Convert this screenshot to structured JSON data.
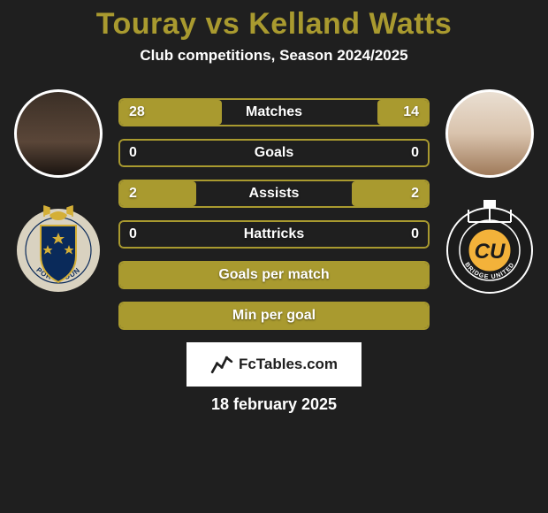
{
  "title_text": "Touray vs Kelland Watts",
  "title_color": "#a99a2f",
  "subtitle": "Club competitions, Season 2024/2025",
  "background_color": "#1f1f1f",
  "bar_border_color": "#a99a2f",
  "fill_color_p1": "#a99a2f",
  "fill_color_p2": "#a99a2f",
  "stats": [
    {
      "label": "Matches",
      "left_val": "28",
      "right_val": "14",
      "left_pct": 66.7,
      "right_pct": 33.3,
      "show_vals": true
    },
    {
      "label": "Goals",
      "left_val": "0",
      "right_val": "0",
      "left_pct": 0,
      "right_pct": 0,
      "show_vals": true
    },
    {
      "label": "Assists",
      "left_val": "2",
      "right_val": "2",
      "left_pct": 50,
      "right_pct": 50,
      "show_vals": true
    },
    {
      "label": "Hattricks",
      "left_val": "0",
      "right_val": "0",
      "left_pct": 0,
      "right_pct": 0,
      "show_vals": true
    },
    {
      "label": "Goals per match",
      "left_val": "",
      "right_val": "",
      "left_pct": 100,
      "right_pct": 0,
      "show_vals": false
    },
    {
      "label": "Min per goal",
      "left_val": "",
      "right_val": "",
      "left_pct": 100,
      "right_pct": 0,
      "show_vals": false
    }
  ],
  "brand": "FcTables.com",
  "date": "18 february 2025",
  "crest_left": {
    "ring_color": "#d9d2c0",
    "ring_text_color": "#0a2a5a",
    "shield_fill": "#0a2a5a",
    "shield_stroke": "#d4af37",
    "label": "PORT COUN"
  },
  "crest_right": {
    "ring_color": "#1b1b1b",
    "ring_stroke": "#ffffff",
    "center_fill": "#f3b23a",
    "initials": "CU",
    "label": "BRIDGE UNITED"
  }
}
